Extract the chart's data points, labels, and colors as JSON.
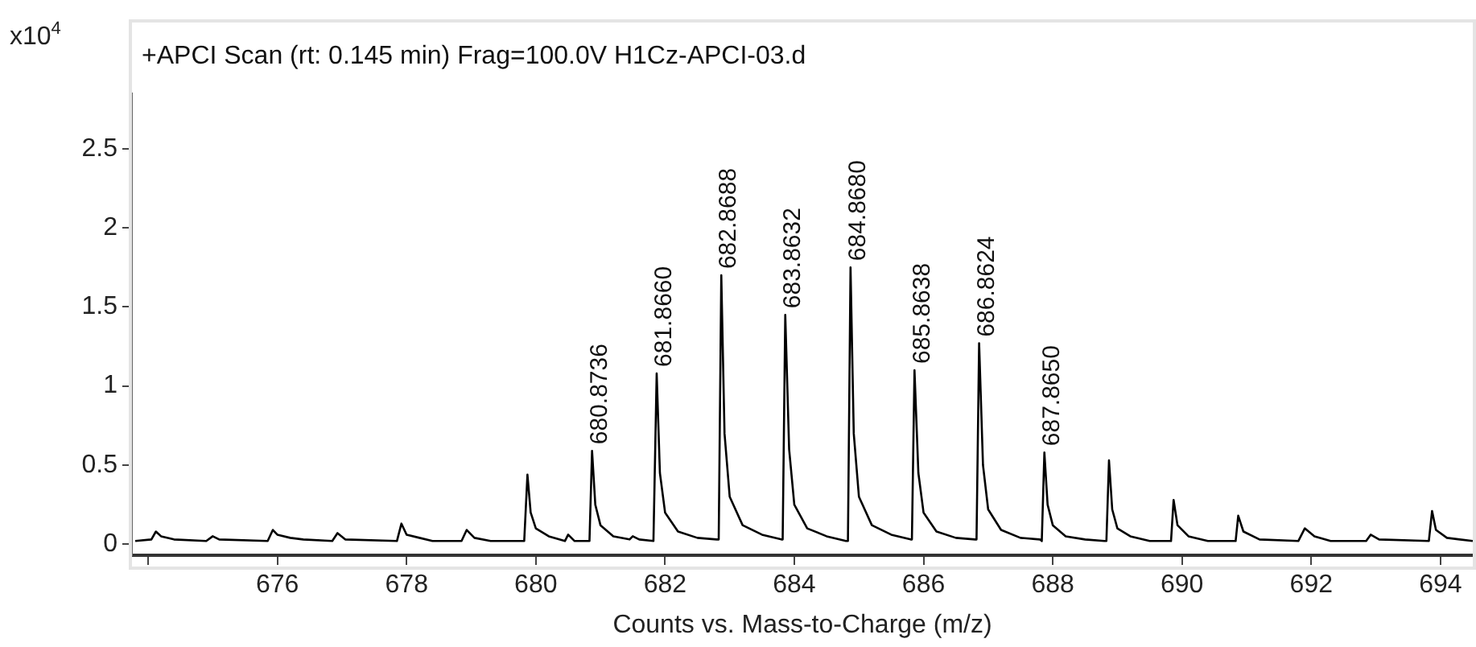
{
  "chart_data": {
    "type": "line",
    "title": "+APCI Scan (rt: 0.145 min) Frag=100.0V H1Cz-APCI-03.d",
    "xlabel": "Counts vs. Mass-to-Charge (m/z)",
    "ylabel": "x10$^{4}$",
    "xlim": [
      673.75,
      694.5
    ],
    "xticks": [
      {
        "value": 674,
        "label": null
      },
      676,
      678,
      680,
      682,
      684,
      686,
      688,
      690,
      692,
      694
    ],
    "ylim": [
      -0.07,
      2.85
    ],
    "yticks": [
      0,
      0.5,
      1,
      1.5,
      2,
      2.5
    ],
    "grid": false,
    "legend": false,
    "marker": "none",
    "line_style": "solid",
    "series": [
      {
        "color": "#000000",
        "x": [
          673.8,
          674.05,
          674.12,
          674.2,
          674.4,
          674.9,
          675.0,
          675.1,
          675.85,
          675.93,
          676.0,
          676.2,
          676.4,
          676.85,
          676.93,
          677.05,
          677.85,
          677.92,
          678.0,
          678.2,
          678.4,
          678.85,
          678.93,
          679.05,
          679.3,
          679.82,
          679.87,
          679.92,
          680.0,
          680.2,
          680.45,
          680.5,
          680.6,
          680.83,
          680.87,
          680.92,
          681.0,
          681.2,
          681.45,
          681.5,
          681.6,
          681.82,
          681.87,
          681.92,
          682.0,
          682.2,
          682.5,
          682.8,
          682.83,
          682.87,
          682.92,
          683.0,
          683.2,
          683.5,
          683.8,
          683.82,
          683.86,
          683.92,
          684.0,
          684.2,
          684.5,
          684.8,
          684.83,
          684.87,
          684.92,
          685.0,
          685.2,
          685.5,
          685.8,
          685.82,
          685.86,
          685.92,
          686.0,
          686.2,
          686.5,
          686.8,
          686.82,
          686.86,
          686.92,
          687.0,
          687.2,
          687.5,
          687.8,
          687.83,
          687.87,
          687.92,
          688.0,
          688.2,
          688.5,
          688.8,
          688.83,
          688.87,
          688.92,
          689.0,
          689.2,
          689.5,
          689.83,
          689.87,
          689.93,
          690.1,
          690.4,
          690.83,
          690.87,
          690.95,
          691.2,
          691.8,
          691.9,
          692.05,
          692.3,
          692.85,
          692.92,
          693.05,
          693.82,
          693.87,
          693.93,
          694.1,
          694.3,
          694.5
        ],
        "values": [
          0.02,
          0.03,
          0.08,
          0.05,
          0.03,
          0.02,
          0.05,
          0.03,
          0.02,
          0.09,
          0.06,
          0.04,
          0.03,
          0.02,
          0.07,
          0.03,
          0.02,
          0.13,
          0.06,
          0.04,
          0.02,
          0.02,
          0.09,
          0.04,
          0.02,
          0.02,
          0.44,
          0.2,
          0.1,
          0.05,
          0.02,
          0.06,
          0.02,
          0.02,
          0.59,
          0.25,
          0.12,
          0.05,
          0.03,
          0.05,
          0.03,
          0.02,
          1.08,
          0.45,
          0.2,
          0.08,
          0.04,
          0.03,
          0.03,
          1.7,
          0.7,
          0.3,
          0.12,
          0.06,
          0.03,
          0.03,
          1.45,
          0.6,
          0.25,
          0.1,
          0.05,
          0.02,
          0.02,
          1.75,
          0.7,
          0.3,
          0.12,
          0.06,
          0.03,
          0.03,
          1.1,
          0.45,
          0.2,
          0.08,
          0.04,
          0.03,
          0.03,
          1.27,
          0.5,
          0.22,
          0.09,
          0.04,
          0.03,
          0.02,
          0.58,
          0.25,
          0.12,
          0.05,
          0.03,
          0.02,
          0.02,
          0.53,
          0.22,
          0.1,
          0.05,
          0.02,
          0.02,
          0.28,
          0.12,
          0.05,
          0.02,
          0.02,
          0.18,
          0.08,
          0.03,
          0.02,
          0.1,
          0.05,
          0.02,
          0.02,
          0.06,
          0.03,
          0.02,
          0.21,
          0.09,
          0.04,
          0.03,
          0.02
        ]
      }
    ],
    "annotations": [
      {
        "text": "680.8736",
        "x": 680.8736,
        "y": 0.59
      },
      {
        "text": "681.8660",
        "x": 681.866,
        "y": 1.08
      },
      {
        "text": "682.8688",
        "x": 682.8688,
        "y": 1.7
      },
      {
        "text": "683.8632",
        "x": 683.8632,
        "y": 1.45
      },
      {
        "text": "684.8680",
        "x": 684.868,
        "y": 1.75
      },
      {
        "text": "685.8638",
        "x": 685.8638,
        "y": 1.1
      },
      {
        "text": "686.8624",
        "x": 686.8624,
        "y": 1.27
      },
      {
        "text": "687.8650",
        "x": 687.865,
        "y": 0.58
      }
    ]
  }
}
